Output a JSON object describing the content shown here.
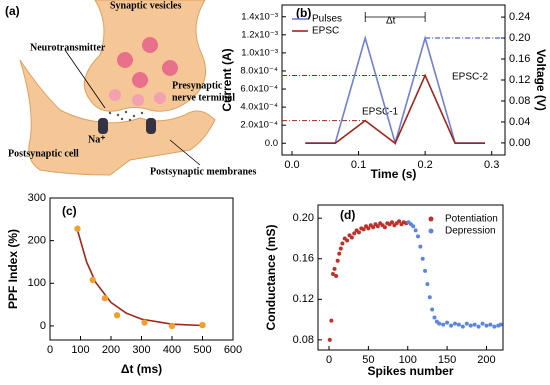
{
  "diagram": {
    "panel_label": "(a)",
    "labels": [
      "Synaptic vesicles",
      "Neurotransmitter",
      "Presynaptic",
      "nerve terminal",
      "Na⁺",
      "Postsynaptic cell",
      "Postsynaptic membranes"
    ]
  },
  "chart_data": [
    {
      "type": "line",
      "panel_label": "(b)",
      "xlabel": "Time (s)",
      "ylabel": "Current (A)",
      "y2label": "Voltage (V)",
      "xlim": [
        -0.015,
        0.32
      ],
      "xticks": [
        {
          "value": 0,
          "label": "0.0"
        },
        0.1,
        0.2,
        0.3
      ],
      "ylim": [
        -0.00013,
        0.00153
      ],
      "yticks": [
        {
          "value": 0,
          "label": "0.0"
        },
        {
          "value": 0.0002,
          "label": "2.0x10⁻⁴"
        },
        {
          "value": 0.0004,
          "label": "4.0x10⁻⁴"
        },
        {
          "value": 0.0006,
          "label": "6.0x10⁻⁴"
        },
        {
          "value": 0.0008,
          "label": "8.0x10⁻⁴"
        },
        {
          "value": 0.001,
          "label": "1.0x10⁻³"
        },
        {
          "value": 0.0012,
          "label": "1.2x10⁻³"
        },
        {
          "value": 0.0014,
          "label": "1.4x10⁻³"
        }
      ],
      "y2lim": [
        -0.023,
        0.263
      ],
      "y2ticks": [
        {
          "value": 0,
          "label": "0.00"
        },
        0.04,
        0.08,
        0.12,
        0.16,
        {
          "value": 0.2,
          "label": "0.20"
        },
        0.24
      ],
      "legend": "upper left",
      "annotations": [
        "EPSC-1",
        "EPSC-2",
        "Δt"
      ],
      "series": [
        {
          "name": "Pulses",
          "color": "#6f7fd8",
          "axis": "y2",
          "x": [
            0.02,
            0.065,
            0.11,
            0.155,
            0.2,
            0.245,
            0.29
          ],
          "values": [
            0,
            0,
            0.2,
            0,
            0.2,
            0,
            0
          ]
        },
        {
          "name": "EPSC",
          "color": "#a0241a",
          "x": [
            0.02,
            0.065,
            0.11,
            0.155,
            0.2,
            0.245,
            0.29
          ],
          "values": [
            0,
            0,
            0.00025,
            0,
            0.00075,
            0,
            0
          ]
        }
      ]
    },
    {
      "type": "scatter",
      "panel_label": "(c)",
      "xlabel": "Δt (ms)",
      "ylabel": "PPF Index (%)",
      "xlim": [
        0,
        600
      ],
      "xticks": [
        0,
        100,
        200,
        300,
        400,
        500,
        600
      ],
      "ylim": [
        -33,
        300
      ],
      "yticks": [
        0,
        100,
        200,
        300
      ],
      "series": [
        {
          "color": "#a0241a",
          "mode": "line",
          "x": [
            90,
            120,
            150,
            200,
            250,
            300,
            400,
            500
          ],
          "values": [
            225,
            150,
            102,
            55,
            30,
            16,
            4,
            1
          ]
        },
        {
          "color": "#f0a030",
          "mode": "markers",
          "x": [
            90,
            140,
            180,
            220,
            310,
            400,
            500
          ],
          "values": [
            228,
            108,
            65,
            25,
            8,
            0,
            2
          ]
        }
      ]
    },
    {
      "type": "scatter",
      "panel_label": "(d)",
      "xlabel": "Spikes number",
      "ylabel": "Conductance (mS)",
      "xlim": [
        -14,
        221
      ],
      "xticks": [
        0,
        50,
        100,
        150,
        200
      ],
      "ylim": [
        0.07,
        0.213
      ],
      "yticks": [
        0.08,
        0.12,
        0.16,
        {
          "value": 0.2,
          "label": "0.20"
        }
      ],
      "legend": "upper right",
      "series": [
        {
          "name": "Potentiation",
          "color": "#c0302a",
          "mode": "markers",
          "x": [
            1,
            3,
            5,
            7,
            9,
            11,
            13,
            15,
            17,
            20,
            23,
            26,
            29,
            32,
            35,
            38,
            41,
            44,
            47,
            50,
            53,
            56,
            59,
            62,
            65,
            68,
            71,
            74,
            77,
            80,
            83,
            86,
            89,
            92,
            95,
            98
          ],
          "values": [
            0.08,
            0.099,
            0.145,
            0.15,
            0.143,
            0.158,
            0.165,
            0.17,
            0.175,
            0.18,
            0.178,
            0.183,
            0.181,
            0.185,
            0.188,
            0.186,
            0.19,
            0.189,
            0.192,
            0.19,
            0.193,
            0.191,
            0.194,
            0.192,
            0.195,
            0.193,
            0.191,
            0.195,
            0.194,
            0.196,
            0.193,
            0.195,
            0.197,
            0.194,
            0.196,
            0.195
          ]
        },
        {
          "name": "Depression",
          "color": "#5b85e0",
          "mode": "markers",
          "x": [
            101,
            104,
            107,
            110,
            113,
            116,
            119,
            122,
            125,
            128,
            131,
            134,
            137,
            140,
            145,
            150,
            155,
            160,
            165,
            170,
            175,
            180,
            185,
            190,
            195,
            200,
            205,
            210,
            215,
            218
          ],
          "values": [
            0.196,
            0.194,
            0.192,
            0.188,
            0.182,
            0.172,
            0.16,
            0.148,
            0.135,
            0.122,
            0.11,
            0.102,
            0.098,
            0.096,
            0.095,
            0.097,
            0.094,
            0.096,
            0.095,
            0.093,
            0.096,
            0.094,
            0.095,
            0.093,
            0.096,
            0.094,
            0.095,
            0.093,
            0.094,
            0.095
          ]
        }
      ]
    }
  ]
}
